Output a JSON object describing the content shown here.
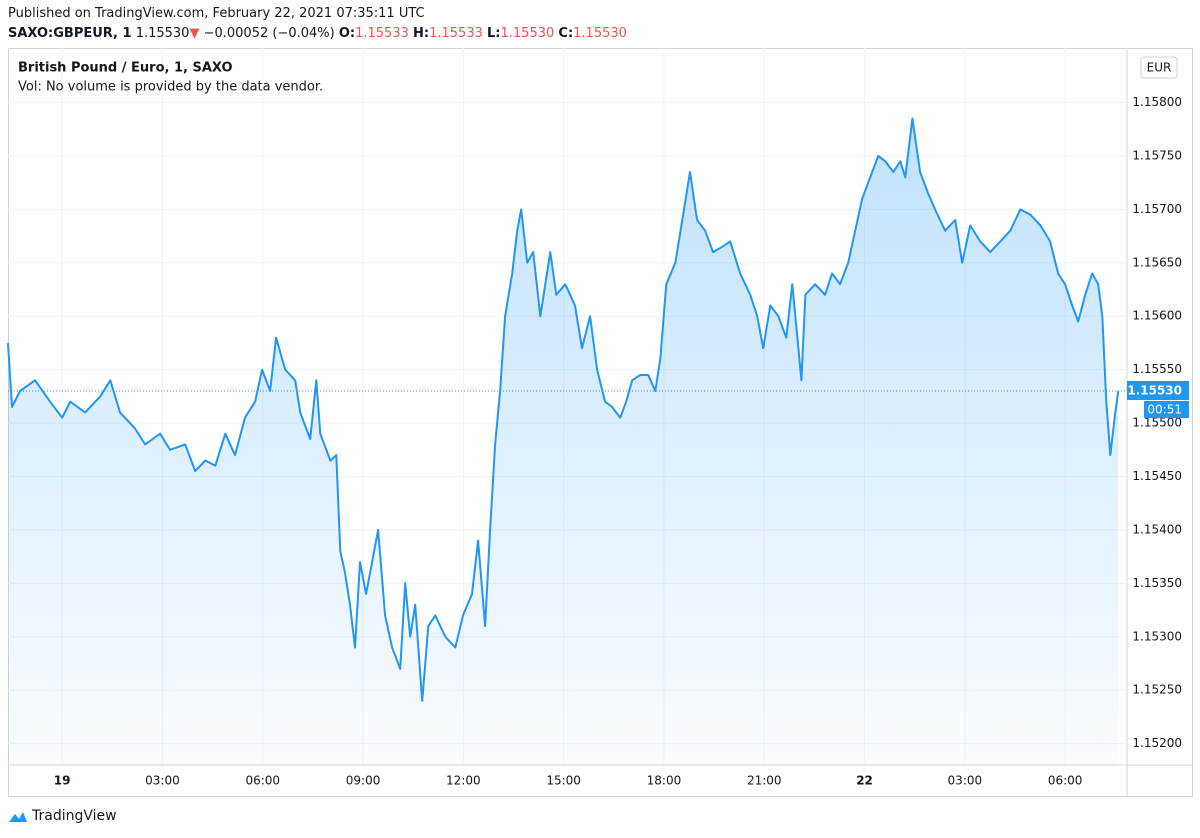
{
  "header": {
    "published": "Published on TradingView.com, February 22, 2021 07:35:11 UTC",
    "symbol": "SAXO:GBPEUR, 1",
    "price": "1.15530",
    "arrow": "▼",
    "change": "−0.00052 (−0.04%)",
    "o_label": "O:",
    "o": "1.15533",
    "h_label": "H:",
    "h": "1.15533",
    "l_label": "L:",
    "l": "1.15530",
    "c_label": "C:",
    "c": "1.15530"
  },
  "chart_data": {
    "type": "area",
    "subtitle": "Vol: No volume is provided by the data vendor.",
    "currency": "EUR",
    "countdown": "00:51",
    "last_price": {
      "value": 1.1553,
      "label": "1.15530"
    },
    "x": [
      -1.62,
      -1.5,
      -1.26,
      -0.81,
      -0.36,
      0,
      0.24,
      0.69,
      1.14,
      1.44,
      1.73,
      2.18,
      2.48,
      2.93,
      3.23,
      3.68,
      3.98,
      4.28,
      4.58,
      4.88,
      5.17,
      5.47,
      5.77,
      5.98,
      6.22,
      6.4,
      6.67,
      6.97,
      7.12,
      7.42,
      7.6,
      7.72,
      8.02,
      8.2,
      8.32,
      8.46,
      8.61,
      8.76,
      8.91,
      9.09,
      9.27,
      9.45,
      9.66,
      9.87,
      10.11,
      10.26,
      10.41,
      10.56,
      10.77,
      10.95,
      11.16,
      11.46,
      11.76,
      11.99,
      12.26,
      12.44,
      12.65,
      12.8,
      12.95,
      13.1,
      13.25,
      13.46,
      13.61,
      13.73,
      13.91,
      14.09,
      14.3,
      14.45,
      14.6,
      14.78,
      15.05,
      15.34,
      15.55,
      15.79,
      16,
      16.24,
      16.45,
      16.69,
      16.87,
      17.05,
      17.29,
      17.53,
      17.74,
      17.89,
      18.07,
      18.34,
      18.55,
      18.78,
      18.99,
      19.23,
      19.47,
      19.74,
      19.98,
      20.28,
      20.58,
      20.79,
      20.97,
      21.18,
      21.42,
      21.66,
      21.84,
      22.02,
      22.11,
      22.23,
      22.52,
      22.82,
      23.03,
      23.27,
      23.51,
      23.72,
      23.93,
      24.17,
      24.41,
      24.62,
      24.86,
      25.07,
      25.22,
      25.43,
      25.66,
      25.9,
      26.11,
      26.41,
      26.71,
      26.92,
      27.16,
      27.46,
      27.76,
      28.06,
      28.36,
      28.66,
      28.96,
      29.26,
      29.55,
      29.79,
      30,
      30.21,
      30.39,
      30.6,
      30.81,
      30.99,
      31.11,
      31.23,
      31.35,
      31.5,
      31.59
    ],
    "series": [
      {
        "name": "British Pound / Euro, 1, SAXO",
        "color": "#2196f3",
        "values": [
          1.15575,
          1.15515,
          1.1553,
          1.1554,
          1.1552,
          1.15505,
          1.1552,
          1.1551,
          1.15525,
          1.1554,
          1.1551,
          1.15495,
          1.1548,
          1.1549,
          1.15475,
          1.1548,
          1.15455,
          1.15465,
          1.1546,
          1.1549,
          1.1547,
          1.15505,
          1.1552,
          1.1555,
          1.1553,
          1.1558,
          1.1555,
          1.1554,
          1.1551,
          1.15485,
          1.1554,
          1.1549,
          1.15465,
          1.1547,
          1.1538,
          1.1536,
          1.1533,
          1.1529,
          1.1537,
          1.1534,
          1.1537,
          1.154,
          1.1532,
          1.1529,
          1.1527,
          1.1535,
          1.153,
          1.1533,
          1.1524,
          1.1531,
          1.1532,
          1.153,
          1.1529,
          1.1532,
          1.1534,
          1.1539,
          1.1531,
          1.154,
          1.1548,
          1.1553,
          1.156,
          1.1564,
          1.1568,
          1.157,
          1.1565,
          1.1566,
          1.156,
          1.1563,
          1.1566,
          1.1562,
          1.1563,
          1.1561,
          1.1557,
          1.156,
          1.1555,
          1.1552,
          1.15515,
          1.15505,
          1.1552,
          1.1554,
          1.15545,
          1.15545,
          1.1553,
          1.1556,
          1.1563,
          1.1565,
          1.1569,
          1.15735,
          1.1569,
          1.1568,
          1.1566,
          1.15665,
          1.1567,
          1.1564,
          1.1562,
          1.156,
          1.1557,
          1.1561,
          1.156,
          1.1558,
          1.1563,
          1.1557,
          1.1554,
          1.1562,
          1.1563,
          1.1562,
          1.1564,
          1.1563,
          1.1565,
          1.1568,
          1.1571,
          1.1573,
          1.1575,
          1.15745,
          1.15735,
          1.15745,
          1.1573,
          1.15785,
          1.15735,
          1.15715,
          1.157,
          1.1568,
          1.1569,
          1.1565,
          1.15685,
          1.1567,
          1.1566,
          1.1567,
          1.1568,
          1.157,
          1.15695,
          1.15685,
          1.1567,
          1.1564,
          1.1563,
          1.1561,
          1.15595,
          1.1562,
          1.1564,
          1.1563,
          1.156,
          1.1552,
          1.1547,
          1.1551,
          1.1553
        ]
      }
    ],
    "xlim": [
      -1.62,
      31.85
    ],
    "xticks": [
      {
        "value": 0,
        "label": "19"
      },
      {
        "value": 3,
        "label": "03:00"
      },
      {
        "value": 6,
        "label": "06:00"
      },
      {
        "value": 9,
        "label": "09:00"
      },
      {
        "value": 12,
        "label": "12:00"
      },
      {
        "value": 15,
        "label": "15:00"
      },
      {
        "value": 18,
        "label": "18:00"
      },
      {
        "value": 21,
        "label": "21:00"
      },
      {
        "value": 24,
        "label": "22"
      },
      {
        "value": 27,
        "label": "03:00"
      },
      {
        "value": 30,
        "label": "06:00"
      }
    ],
    "ylim": [
      1.1518,
      1.15851
    ],
    "yticks": [
      {
        "value": 1.152,
        "label": "1.15200"
      },
      {
        "value": 1.1525,
        "label": "1.15250"
      },
      {
        "value": 1.153,
        "label": "1.15300"
      },
      {
        "value": 1.1535,
        "label": "1.15350"
      },
      {
        "value": 1.154,
        "label": "1.15400"
      },
      {
        "value": 1.1545,
        "label": "1.15450"
      },
      {
        "value": 1.155,
        "label": "1.15500"
      },
      {
        "value": 1.1555,
        "label": "1.15550"
      },
      {
        "value": 1.156,
        "label": "1.15600"
      },
      {
        "value": 1.1565,
        "label": "1.15650"
      },
      {
        "value": 1.157,
        "label": "1.15700"
      },
      {
        "value": 1.1575,
        "label": "1.15750"
      },
      {
        "value": 1.158,
        "label": "1.15800"
      }
    ],
    "grid": true
  },
  "footer": {
    "brand": "TradingView"
  }
}
